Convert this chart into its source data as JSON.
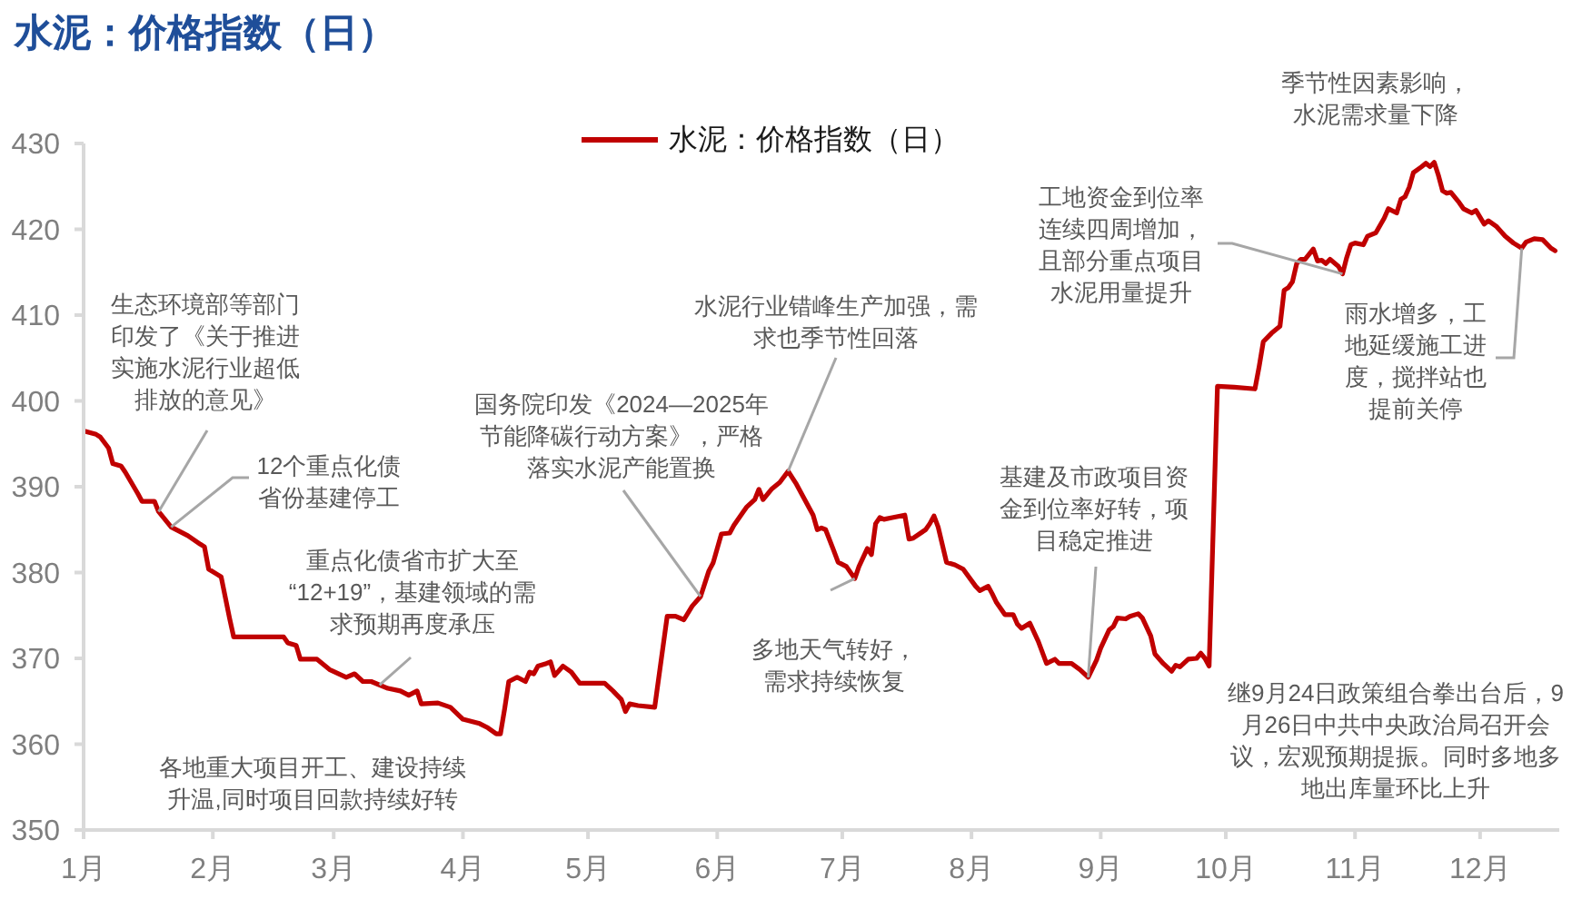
{
  "chart_data": {
    "type": "line",
    "title": "水泥：价格指数（日）",
    "x": [
      "2024-01-01",
      "2024-01-04",
      "2024-01-05",
      "2024-01-07",
      "2024-01-08",
      "2024-01-10",
      "2024-01-11",
      "2024-01-14",
      "2024-01-15",
      "2024-01-18",
      "2024-01-19",
      "2024-01-22",
      "2024-01-26",
      "2024-01-29",
      "2024-01-30",
      "2024-01-31",
      "2024-02-02",
      "2024-02-03",
      "2024-02-05",
      "2024-02-06",
      "2024-02-18",
      "2024-02-19",
      "2024-02-21",
      "2024-02-22",
      "2024-02-26",
      "2024-02-29",
      "2024-03-04",
      "2024-03-06",
      "2024-03-08",
      "2024-03-10",
      "2024-03-14",
      "2024-03-17",
      "2024-03-19",
      "2024-03-21",
      "2024-03-22",
      "2024-03-26",
      "2024-03-29",
      "2024-04-01",
      "2024-04-05",
      "2024-04-07",
      "2024-04-09",
      "2024-04-10",
      "2024-04-11",
      "2024-04-12",
      "2024-04-14",
      "2024-04-16",
      "2024-04-17",
      "2024-04-18",
      "2024-04-19",
      "2024-04-21",
      "2024-04-22",
      "2024-04-23",
      "2024-04-25",
      "2024-04-27",
      "2024-04-29",
      "2024-05-05",
      "2024-05-07",
      "2024-05-09",
      "2024-05-10",
      "2024-05-11",
      "2024-05-13",
      "2024-05-17",
      "2024-05-20",
      "2024-05-22",
      "2024-05-24",
      "2024-05-26",
      "2024-05-28",
      "2024-05-30",
      "2024-05-31",
      "2024-06-02",
      "2024-06-04",
      "2024-06-05",
      "2024-06-07",
      "2024-06-08",
      "2024-06-10",
      "2024-06-11",
      "2024-06-12",
      "2024-06-14",
      "2024-06-16",
      "2024-06-18",
      "2024-06-20",
      "2024-06-22",
      "2024-06-24",
      "2024-06-25",
      "2024-06-26",
      "2024-06-27",
      "2024-06-29",
      "2024-06-30",
      "2024-07-02",
      "2024-07-04",
      "2024-07-05",
      "2024-07-07",
      "2024-07-08",
      "2024-07-09",
      "2024-07-10",
      "2024-07-11",
      "2024-07-13",
      "2024-07-16",
      "2024-07-17",
      "2024-07-18",
      "2024-07-21",
      "2024-07-22",
      "2024-07-23",
      "2024-07-24",
      "2024-07-26",
      "2024-07-28",
      "2024-07-30",
      "2024-08-02",
      "2024-08-03",
      "2024-08-05",
      "2024-08-06",
      "2024-08-07",
      "2024-08-09",
      "2024-08-11",
      "2024-08-12",
      "2024-08-13",
      "2024-08-15",
      "2024-08-17",
      "2024-08-19",
      "2024-08-21",
      "2024-08-22",
      "2024-08-25",
      "2024-08-27",
      "2024-08-29",
      "2024-08-31",
      "2024-09-01",
      "2024-09-03",
      "2024-09-04",
      "2024-09-05",
      "2024-09-07",
      "2024-09-08",
      "2024-09-10",
      "2024-09-11",
      "2024-09-13",
      "2024-09-14",
      "2024-09-16",
      "2024-09-18",
      "2024-09-19",
      "2024-09-20",
      "2024-09-22",
      "2024-09-24",
      "2024-09-25",
      "2024-09-26",
      "2024-09-27",
      "2024-09-29",
      "2024-10-03",
      "2024-10-08",
      "2024-10-09",
      "2024-10-10",
      "2024-10-12",
      "2024-10-13",
      "2024-10-14",
      "2024-10-15",
      "2024-10-16",
      "2024-10-17",
      "2024-10-18",
      "2024-10-19",
      "2024-10-20",
      "2024-10-22",
      "2024-10-23",
      "2024-10-24",
      "2024-10-25",
      "2024-10-26",
      "2024-10-28",
      "2024-10-29",
      "2024-10-30",
      "2024-10-31",
      "2024-11-01",
      "2024-11-03",
      "2024-11-04",
      "2024-11-06",
      "2024-11-08",
      "2024-11-09",
      "2024-11-11",
      "2024-11-12",
      "2024-11-13",
      "2024-11-14",
      "2024-11-15",
      "2024-11-17",
      "2024-11-18",
      "2024-11-19",
      "2024-11-20",
      "2024-11-21",
      "2024-11-22",
      "2024-11-23",
      "2024-11-24",
      "2024-11-26",
      "2024-11-27",
      "2024-11-29",
      "2024-11-30",
      "2024-12-02",
      "2024-12-03",
      "2024-12-05",
      "2024-12-07",
      "2024-12-09",
      "2024-12-11",
      "2024-12-12",
      "2024-12-14",
      "2024-12-16",
      "2024-12-18",
      "2024-12-19"
    ],
    "series": [
      {
        "name": "水泥：价格指数（日）",
        "color": "#c00000",
        "values": [
          396.5,
          396.1,
          395.8,
          394.5,
          392.7,
          392.4,
          391.7,
          389.2,
          388.3,
          388.3,
          387.1,
          385.3,
          384.3,
          383.3,
          383.0,
          380.4,
          379.8,
          379.5,
          374.7,
          372.5,
          372.5,
          371.8,
          371.5,
          369.9,
          369.9,
          368.7,
          367.8,
          368.2,
          367.3,
          367.3,
          366.5,
          366.2,
          365.7,
          366.2,
          364.7,
          364.8,
          364.3,
          362.9,
          362.4,
          361.9,
          361.2,
          361.2,
          364.1,
          367.3,
          367.8,
          367.3,
          368.4,
          368.2,
          369.1,
          369.4,
          369.6,
          368.0,
          369.1,
          368.4,
          367.1,
          367.1,
          366.2,
          365.2,
          363.8,
          364.7,
          364.5,
          364.3,
          374.9,
          374.9,
          374.5,
          376.1,
          377.2,
          380.2,
          381.1,
          384.5,
          384.6,
          385.5,
          386.9,
          387.6,
          388.5,
          389.7,
          388.5,
          389.7,
          390.5,
          391.8,
          390.3,
          388.5,
          386.7,
          385.0,
          385.2,
          385.0,
          382.5,
          381.2,
          380.7,
          379.3,
          380.7,
          382.8,
          382.1,
          385.7,
          386.4,
          386.2,
          386.4,
          386.7,
          383.9,
          384.0,
          385.0,
          385.7,
          386.6,
          385.3,
          381.2,
          380.9,
          380.4,
          378.4,
          377.9,
          378.4,
          377.5,
          376.5,
          375.1,
          375.1,
          374.0,
          373.5,
          374.1,
          372.0,
          369.4,
          369.9,
          369.4,
          369.4,
          368.7,
          367.8,
          369.8,
          371.2,
          373.3,
          373.7,
          374.7,
          374.6,
          374.9,
          375.2,
          374.7,
          372.6,
          370.5,
          369.4,
          368.5,
          369.2,
          369.0,
          369.9,
          370.0,
          370.6,
          370.0,
          369.1,
          401.7,
          401.6,
          401.4,
          404.0,
          406.9,
          407.9,
          408.3,
          408.7,
          412.9,
          413.2,
          413.9,
          416.0,
          416.5,
          416.5,
          417.7,
          416.3,
          416.4,
          416.0,
          416.5,
          415.7,
          414.8,
          416.7,
          418.2,
          418.4,
          418.2,
          419.2,
          419.6,
          421.3,
          422.4,
          421.9,
          423.5,
          423.8,
          424.9,
          426.6,
          427.3,
          427.7,
          427.3,
          427.8,
          426.3,
          424.5,
          424.2,
          424.3,
          423.1,
          422.4,
          421.9,
          422.2,
          420.6,
          421.0,
          420.3,
          419.2,
          418.4,
          417.8,
          418.5,
          418.9,
          418.8,
          417.8,
          417.5
        ]
      }
    ],
    "xlim": [
      "2024-01-01",
      "2024-12-20"
    ],
    "xticks": [
      {
        "value": "2024-01-01",
        "label": "1月"
      },
      {
        "value": "2024-02-01",
        "label": "2月"
      },
      {
        "value": "2024-03-01",
        "label": "3月"
      },
      {
        "value": "2024-04-01",
        "label": "4月"
      },
      {
        "value": "2024-05-01",
        "label": "5月"
      },
      {
        "value": "2024-06-01",
        "label": "6月"
      },
      {
        "value": "2024-07-01",
        "label": "7月"
      },
      {
        "value": "2024-08-01",
        "label": "8月"
      },
      {
        "value": "2024-09-01",
        "label": "9月"
      },
      {
        "value": "2024-10-01",
        "label": "10月"
      },
      {
        "value": "2024-11-01",
        "label": "11月"
      },
      {
        "value": "2024-12-01",
        "label": "12月"
      }
    ],
    "ylim": [
      350,
      430
    ],
    "yticks": [
      350,
      360,
      370,
      380,
      390,
      400,
      410,
      420,
      430
    ],
    "legend": "top",
    "marker": "none",
    "annotations": [
      {
        "text": "生态环境部等部门印发了《关于推进实施水泥行业超低排放的意见》",
        "x": "2024-01-19",
        "y": 387.1
      },
      {
        "text": "12个重点化债省份基建停工",
        "x": "2024-01-22",
        "y": 385.3
      },
      {
        "text": "重点化债省市扩大至“12+19”，基建领域的需求预期再度承压",
        "x": "2024-03-12",
        "y": 366.9
      },
      "各地重大项目开工、建设持续升温,同时项目回款持续好转",
      {
        "text": "国务院印发《2024—2025年节能降碳行动方案》，严格落实水泥产能置换",
        "x": "2024-05-28",
        "y": 377.2
      },
      {
        "text": "水泥行业错峰生产加强，需求也季节性回落",
        "x": "2024-06-18",
        "y": 391.8
      },
      {
        "text": "多地天气转好，需求持续恢复",
        "x": "2024-07-04",
        "y": 379.3
      },
      {
        "text": "基建及市政项目资金到位率好转，项目稳定推进",
        "x": "2024-08-29",
        "y": 367.8
      },
      "继9月24日政策组合拳出台后，9月26日中共中央政治局召开会议，宏观预期提振。同时多地多地出库量环比上升",
      {
        "text": "工地资金到位率连续四周增加，且部分重点项目水泥用量提升",
        "x": "2024-10-29",
        "y": 414.8
      },
      "季节性因素影响，水泥需求量下降",
      {
        "text": "雨水增多，工地延缓施工进度，搅拌站也提前关停",
        "x": "2024-12-11",
        "y": 417.8
      }
    ]
  }
}
